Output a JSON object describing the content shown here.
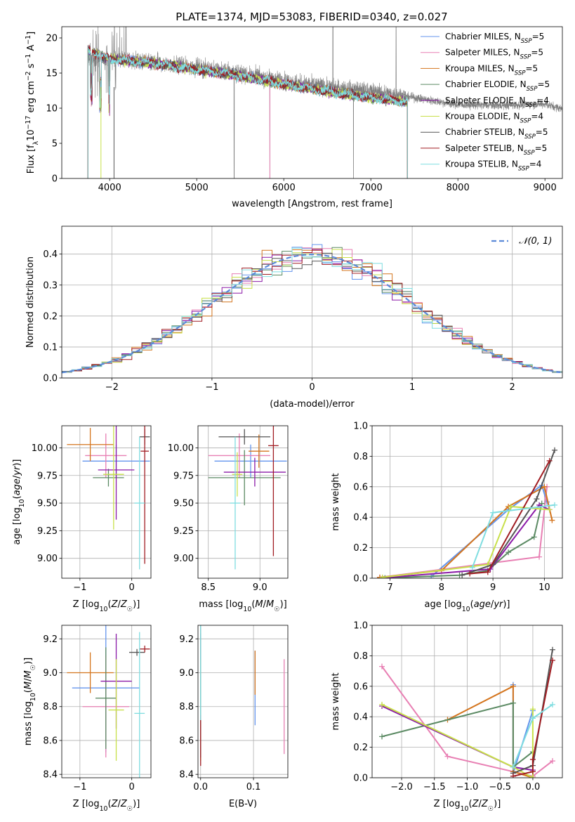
{
  "figure": {
    "title": "PLATE=1374, MJD=53083, FIBERID=0340, z=0.027"
  },
  "colors": [
    "#6495ed",
    "#e87fb3",
    "#d4751e",
    "#5b8a63",
    "#8b1aa8",
    "#c8e04a",
    "#555555",
    "#a01c22",
    "#7fdde0"
  ],
  "legend_entries": [
    {
      "label": "Chabrier MILES, N",
      "sub": "SSP",
      "tail": "=5"
    },
    {
      "label": "Salpeter MILES, N",
      "sub": "SSP",
      "tail": "=5"
    },
    {
      "label": "Kroupa MILES, N",
      "sub": "SSP",
      "tail": "=5"
    },
    {
      "label": "Chabrier ELODIE, N",
      "sub": "SSP",
      "tail": "=5"
    },
    {
      "label": "Salpeter ELODIE, N",
      "sub": "SSP",
      "tail": "=4"
    },
    {
      "label": "Kroupa ELODIE, N",
      "sub": "SSP",
      "tail": "=4"
    },
    {
      "label": "Chabrier STELIB, N",
      "sub": "SSP",
      "tail": "=5"
    },
    {
      "label": "Salpeter STELIB, N",
      "sub": "SSP",
      "tail": "=5"
    },
    {
      "label": "Kroupa STELIB, N",
      "sub": "SSP",
      "tail": "=4"
    }
  ],
  "chart_data": [
    {
      "id": "spectrum",
      "type": "line",
      "xlabel": "wavelength [Angstrom, rest frame]",
      "ylabel": "Flux [fλ10⁻¹⁷ erg cm⁻² s⁻¹ A⁻¹]",
      "xlim": [
        3450,
        9200
      ],
      "ylim": [
        0,
        21.6
      ],
      "xticks": [
        4000,
        5000,
        6000,
        7000,
        8000,
        9000
      ],
      "yticks": [
        0,
        5,
        10,
        15,
        20
      ],
      "data_range": [
        3750,
        7420
      ],
      "model_range": [
        3750,
        7420
      ],
      "continuum": [
        [
          3750,
          18.2
        ],
        [
          4000,
          17.0
        ],
        [
          4500,
          16.4
        ],
        [
          5000,
          15.5
        ],
        [
          5500,
          14.6
        ],
        [
          6000,
          13.4
        ],
        [
          6500,
          12.4
        ],
        [
          7000,
          11.5
        ],
        [
          7420,
          10.9
        ]
      ],
      "data_continuum": [
        [
          3750,
          17.0
        ],
        [
          4000,
          17.2
        ],
        [
          4500,
          16.5
        ],
        [
          5000,
          15.8
        ],
        [
          5500,
          15.0
        ],
        [
          6000,
          13.9
        ],
        [
          6500,
          13.0
        ],
        [
          7000,
          12.4
        ],
        [
          7500,
          11.5
        ],
        [
          8000,
          10.5
        ],
        [
          8500,
          10.4
        ],
        [
          9000,
          10.6
        ],
        [
          9200,
          9.9
        ]
      ]
    },
    {
      "id": "residuals",
      "type": "step",
      "xlabel": "(data-model)/error",
      "ylabel": "Normed distribution",
      "xlim": [
        -2.5,
        2.5
      ],
      "ylim": [
        0,
        0.49
      ],
      "xticks": [
        -2,
        -1,
        0,
        1,
        2
      ],
      "yticks": [
        0.0,
        0.1,
        0.2,
        0.3,
        0.4
      ],
      "bin_width": 0.1,
      "reference_label": "𝒩(0, 1)",
      "reference_color": "#5b8ad8"
    },
    {
      "id": "age_vs_Z",
      "type": "errorbar",
      "xlabel": "Z [log10(Z/Z☉)]",
      "ylabel": "age  [log10(age/yr)]",
      "xlim": [
        -1.35,
        0.37
      ],
      "ylim": [
        8.82,
        10.2
      ],
      "xticks": [
        -1,
        0
      ],
      "yticks": [
        9.0,
        9.25,
        9.5,
        9.75,
        10.0
      ],
      "points": [
        {
          "x": -0.3,
          "y": 9.88,
          "xerr": 0.65,
          "yerr": 0.15
        },
        {
          "x": -0.5,
          "y": 9.93,
          "xerr": 0.4,
          "yerr": 0.2
        },
        {
          "x": -0.8,
          "y": 10.03,
          "xerr": 0.45,
          "yerr": 0.15
        },
        {
          "x": -0.45,
          "y": 9.73,
          "xerr": 0.3,
          "yerr": 0.08
        },
        {
          "x": -0.3,
          "y": 9.8,
          "xerr": 0.35,
          "yerr": 0.45
        },
        {
          "x": -0.35,
          "y": 9.76,
          "xerr": 0.2,
          "yerr": 0.5
        },
        {
          "x": 0.25,
          "y": 10.1,
          "xerr": 0.1,
          "yerr": 0.07
        },
        {
          "x": 0.25,
          "y": 9.97,
          "xerr": 0.08,
          "yerr": 1.02
        },
        {
          "x": 0.15,
          "y": 9.5,
          "xerr": 0.1,
          "yerr": 0.6
        }
      ]
    },
    {
      "id": "age_vs_mass",
      "type": "errorbar",
      "xlabel": "mass [log10(M/M☉)]",
      "ylabel": "",
      "xlim": [
        8.4,
        9.27
      ],
      "ylim": [
        8.82,
        10.2
      ],
      "xticks": [
        8.5,
        9.0
      ],
      "yticks": [
        9.0,
        9.25,
        9.5,
        9.75,
        10.0
      ],
      "points": [
        {
          "x": 8.91,
          "y": 9.88,
          "xerr": 0.35,
          "yerr": 0.15
        },
        {
          "x": 8.8,
          "y": 9.93,
          "xerr": 0.3,
          "yerr": 0.2
        },
        {
          "x": 8.99,
          "y": 9.97,
          "xerr": 0.1,
          "yerr": 0.15
        },
        {
          "x": 8.85,
          "y": 9.73,
          "xerr": 0.35,
          "yerr": 0.25
        },
        {
          "x": 8.95,
          "y": 9.78,
          "xerr": 0.3,
          "yerr": 0.13
        },
        {
          "x": 8.78,
          "y": 9.76,
          "xerr": 0.05,
          "yerr": 0.2
        },
        {
          "x": 8.85,
          "y": 10.1,
          "xerr": 0.25,
          "yerr": 0.07
        },
        {
          "x": 9.13,
          "y": 10.02,
          "xerr": 0.05,
          "yerr": 1.0
        },
        {
          "x": 8.76,
          "y": 9.5,
          "xerr": 0.05,
          "yerr": 0.6
        }
      ]
    },
    {
      "id": "massweight_vs_age",
      "type": "line",
      "xlabel": "age  [log10(age/yr)]",
      "ylabel": "mass weight",
      "xlim": [
        6.65,
        10.35
      ],
      "ylim": [
        0,
        1
      ],
      "xticks": [
        7,
        8,
        9,
        10
      ],
      "yticks": [
        0.0,
        0.2,
        0.4,
        0.6,
        0.8,
        1.0
      ],
      "series": [
        {
          "x": [
            7.8,
            9.3,
            9.95,
            10.05
          ],
          "y": [
            0.01,
            0.45,
            0.61,
            0.5
          ]
        },
        {
          "x": [
            6.8,
            9.9,
            10.05
          ],
          "y": [
            0.005,
            0.14,
            0.6
          ]
        },
        {
          "x": [
            6.8,
            8.0,
            9.3,
            10.0,
            10.15
          ],
          "y": [
            0.005,
            0.05,
            0.47,
            0.6,
            0.38
          ]
        },
        {
          "x": [
            6.9,
            8.35,
            8.9,
            9.3,
            9.8,
            9.95
          ],
          "y": [
            0.002,
            0.02,
            0.05,
            0.17,
            0.27,
            0.49
          ]
        },
        {
          "x": [
            6.85,
            8.95,
            9.9,
            10.1
          ],
          "y": [
            0.002,
            0.06,
            0.48,
            0.45
          ]
        },
        {
          "x": [
            6.85,
            8.9,
            9.35,
            10.1
          ],
          "y": [
            0.005,
            0.09,
            0.47,
            0.45
          ]
        },
        {
          "x": [
            8.4,
            9.0,
            9.85,
            10.2
          ],
          "y": [
            0.02,
            0.09,
            0.52,
            0.84
          ]
        },
        {
          "x": [
            8.55,
            8.9,
            10.1
          ],
          "y": [
            0.03,
            0.04,
            0.77
          ]
        },
        {
          "x": [
            8.6,
            9.0,
            10.2
          ],
          "y": [
            0.07,
            0.43,
            0.48
          ]
        }
      ]
    },
    {
      "id": "mass_vs_Z",
      "type": "errorbar",
      "xlabel": "Z [log10(Z/Z☉)]",
      "ylabel": "mass [log10(M/M☉)]",
      "xlim": [
        -1.35,
        0.37
      ],
      "ylim": [
        8.38,
        9.28
      ],
      "xticks": [
        -1,
        0
      ],
      "yticks": [
        8.4,
        8.6,
        8.8,
        9.0,
        9.2
      ],
      "points": [
        {
          "x": -0.5,
          "y": 8.91,
          "xerr": 0.65,
          "yerr": 0.38
        },
        {
          "x": -0.5,
          "y": 8.8,
          "xerr": 0.45,
          "yerr": 0.3
        },
        {
          "x": -0.8,
          "y": 9.0,
          "xerr": 0.45,
          "yerr": 0.12
        },
        {
          "x": -0.5,
          "y": 8.85,
          "xerr": 0.2,
          "yerr": 0.3
        },
        {
          "x": -0.3,
          "y": 8.95,
          "xerr": 0.3,
          "yerr": 0.28
        },
        {
          "x": -0.3,
          "y": 8.78,
          "xerr": 0.15,
          "yerr": 0.3
        },
        {
          "x": 0.1,
          "y": 9.12,
          "xerr": 0.15,
          "yerr": 0.02
        },
        {
          "x": 0.25,
          "y": 9.14,
          "xerr": 0.1,
          "yerr": 0.02
        },
        {
          "x": 0.15,
          "y": 8.76,
          "xerr": 0.1,
          "yerr": 0.48
        }
      ]
    },
    {
      "id": "mass_vs_ebv",
      "type": "errorbar",
      "xlabel": "E(B-V)",
      "ylabel": "",
      "xlim": [
        -0.005,
        0.165
      ],
      "ylim": [
        8.38,
        9.28
      ],
      "xticks": [
        0.0,
        0.1
      ],
      "yticks": [
        8.4,
        8.6,
        8.8,
        9.0,
        9.2
      ],
      "points": [
        {
          "x": 0.103,
          "y": 8.91,
          "xerr": 0.0,
          "yerr": 0.22
        },
        {
          "x": 0.158,
          "y": 8.8,
          "xerr": 0.0,
          "yerr": 0.28
        },
        {
          "x": 0.103,
          "y": 9.0,
          "xerr": 0.0,
          "yerr": 0.13
        },
        {
          "x": 0.0,
          "y": 8.85,
          "xerr": 0.0,
          "yerr": 0.35
        },
        {
          "x": 0.0,
          "y": 8.95,
          "xerr": 0.0,
          "yerr": 0.28
        },
        {
          "x": 0.0,
          "y": 8.78,
          "xerr": 0.0,
          "yerr": 0.3
        },
        {
          "x": 0.0,
          "y": 8.9,
          "xerr": 0.0,
          "yerr": 0.4
        },
        {
          "x": 0.0,
          "y": 8.6,
          "xerr": 0.0,
          "yerr": 0.15
        },
        {
          "x": 0.0,
          "y": 9.0,
          "xerr": 0.0,
          "yerr": 0.28
        }
      ]
    },
    {
      "id": "massweight_vs_Z",
      "type": "line",
      "xlabel": "Z [log10(Z/Z☉)]",
      "ylabel": "mass weight",
      "xlim": [
        -2.45,
        0.45
      ],
      "ylim": [
        0,
        1
      ],
      "xticks": [
        -2.0,
        -1.5,
        -1.0,
        -0.5,
        0.0
      ],
      "yticks": [
        0.0,
        0.2,
        0.4,
        0.6,
        0.8,
        1.0
      ],
      "series": [
        {
          "x": [
            -0.3,
            -0.3,
            0.0
          ],
          "y": [
            0.61,
            0.03,
            0.44
          ]
        },
        {
          "x": [
            -2.3,
            -1.3,
            -0.3,
            0.0,
            0.3
          ],
          "y": [
            0.73,
            0.14,
            0.04,
            0.01,
            0.11
          ]
        },
        {
          "x": [
            -1.3,
            -0.3,
            -0.3,
            0.0
          ],
          "y": [
            0.38,
            0.6,
            0.04,
            0.0
          ]
        },
        {
          "x": [
            -2.3,
            -0.3,
            -0.3,
            0.0
          ],
          "y": [
            0.27,
            0.49,
            0.07,
            0.17
          ]
        },
        {
          "x": [
            -2.3,
            -0.3,
            0.0
          ],
          "y": [
            0.47,
            0.07,
            0.05
          ]
        },
        {
          "x": [
            -2.3,
            -0.3,
            0.0,
            0.0
          ],
          "y": [
            0.48,
            0.07,
            0.0,
            0.45
          ]
        },
        {
          "x": [
            -0.3,
            0.0,
            0.3
          ],
          "y": [
            0.03,
            0.08,
            0.84
          ]
        },
        {
          "x": [
            -0.3,
            0.0,
            0.0,
            0.3
          ],
          "y": [
            0.01,
            0.04,
            0.12,
            0.77
          ]
        },
        {
          "x": [
            -0.3,
            0.0,
            0.3
          ],
          "y": [
            0.07,
            0.39,
            0.48
          ]
        }
      ]
    }
  ]
}
